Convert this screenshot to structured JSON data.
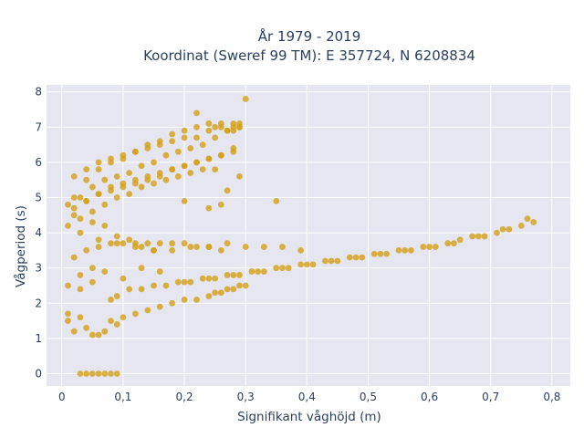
{
  "chart_data": {
    "type": "scatter",
    "title_line1": "År 1979 - 2019",
    "title_line2": "Koordinat (Sweref 99 TM): E 357724, N 6208834",
    "xlabel": "Signifikant våghöjd (m)",
    "ylabel": "Vågperiod (s)",
    "xlim": [
      -0.025,
      0.83
    ],
    "ylim": [
      -0.35,
      8.2
    ],
    "x_ticks": [
      0,
      0.1,
      0.2,
      0.3,
      0.4,
      0.5,
      0.6,
      0.7,
      0.8
    ],
    "x_tick_labels": [
      "0",
      "0,1",
      "0,2",
      "0,3",
      "0,4",
      "0,5",
      "0,6",
      "0,7",
      "0,8"
    ],
    "y_ticks": [
      0,
      1,
      2,
      3,
      4,
      5,
      6,
      7,
      8
    ],
    "y_tick_labels": [
      "0",
      "1",
      "2",
      "3",
      "4",
      "5",
      "6",
      "7",
      "8"
    ],
    "grid": true,
    "legend": "none",
    "colors": {
      "marker": "#d4a017",
      "plot_background": "#e5e6f0",
      "grid": "#ffffff",
      "text": "#2a3f5f"
    },
    "series": [
      {
        "color": "#d4a017",
        "x": [
          0.03,
          0.04,
          0.05,
          0.06,
          0.07,
          0.08,
          0.09,
          0.01,
          0.02,
          0.03,
          0.04,
          0.05,
          0.06,
          0.07,
          0.08,
          0.09,
          0.1,
          0.12,
          0.14,
          0.16,
          0.18,
          0.2,
          0.22,
          0.24,
          0.25,
          0.26,
          0.27,
          0.28,
          0.29,
          0.3,
          0.01,
          0.03,
          0.05,
          0.07,
          0.09,
          0.11,
          0.13,
          0.15,
          0.17,
          0.19,
          0.21,
          0.23,
          0.25,
          0.27,
          0.29,
          0.31,
          0.33,
          0.35,
          0.37,
          0.39,
          0.41,
          0.43,
          0.45,
          0.47,
          0.49,
          0.51,
          0.53,
          0.55,
          0.57,
          0.59,
          0.61,
          0.63,
          0.65,
          0.67,
          0.69,
          0.71,
          0.73,
          0.75,
          0.77,
          0.01,
          0.03,
          0.05,
          0.08,
          0.1,
          0.13,
          0.16,
          0.2,
          0.24,
          0.28,
          0.32,
          0.36,
          0.4,
          0.44,
          0.48,
          0.52,
          0.56,
          0.6,
          0.64,
          0.68,
          0.72,
          0.76,
          0.02,
          0.04,
          0.06,
          0.08,
          0.1,
          0.12,
          0.14,
          0.16,
          0.18,
          0.2,
          0.22,
          0.24,
          0.26,
          0.06,
          0.09,
          0.12,
          0.15,
          0.18,
          0.21,
          0.24,
          0.27,
          0.3,
          0.33,
          0.36,
          0.39,
          0.03,
          0.05,
          0.07,
          0.09,
          0.11,
          0.13,
          0.15,
          0.02,
          0.04,
          0.06,
          0.08,
          0.1,
          0.12,
          0.14,
          0.16,
          0.18,
          0.2,
          0.22,
          0.24,
          0.26,
          0.28,
          0.01,
          0.03,
          0.05,
          0.07,
          0.09,
          0.11,
          0.13,
          0.15,
          0.17,
          0.19,
          0.21,
          0.23,
          0.25,
          0.27,
          0.29,
          0.02,
          0.04,
          0.06,
          0.08,
          0.1,
          0.12,
          0.14,
          0.16,
          0.18,
          0.2,
          0.22,
          0.24,
          0.26,
          0.28,
          0.01,
          0.03,
          0.05,
          0.07,
          0.09,
          0.11,
          0.13,
          0.15,
          0.17,
          0.19,
          0.21,
          0.23,
          0.25,
          0.27,
          0.02,
          0.04,
          0.06,
          0.08,
          0.1,
          0.12,
          0.14,
          0.16,
          0.18,
          0.2,
          0.22,
          0.24,
          0.26,
          0.28,
          0.29,
          0.02,
          0.04,
          0.06,
          0.08,
          0.1,
          0.12,
          0.14,
          0.16,
          0.18,
          0.2,
          0.22,
          0.24,
          0.26,
          0.28,
          0.22,
          0.25,
          0.28,
          0.29,
          0.3,
          0.27,
          0.35,
          0.29,
          0.24,
          0.2,
          0.26
        ],
        "y": [
          0,
          0,
          0,
          0,
          0,
          0,
          0,
          1.5,
          1.2,
          1.6,
          1.3,
          1.1,
          1.1,
          1.2,
          1.5,
          1.4,
          1.6,
          1.7,
          1.8,
          1.9,
          2.0,
          2.1,
          2.1,
          2.2,
          2.3,
          2.3,
          2.4,
          2.4,
          2.5,
          2.5,
          2.5,
          2.8,
          3.0,
          2.9,
          2.2,
          2.4,
          2.4,
          2.5,
          2.5,
          2.6,
          2.6,
          2.7,
          2.7,
          2.8,
          2.8,
          2.9,
          2.9,
          3.0,
          3.0,
          3.1,
          3.1,
          3.2,
          3.2,
          3.3,
          3.3,
          3.4,
          3.4,
          3.5,
          3.5,
          3.6,
          3.6,
          3.7,
          3.8,
          3.9,
          3.9,
          4.0,
          4.1,
          4.2,
          4.3,
          1.7,
          2.4,
          2.6,
          2.1,
          2.7,
          3.0,
          2.9,
          2.6,
          2.7,
          2.8,
          2.9,
          3.0,
          3.1,
          3.2,
          3.3,
          3.4,
          3.5,
          3.6,
          3.7,
          3.9,
          4.1,
          4.4,
          3.3,
          3.5,
          3.6,
          3.7,
          3.7,
          3.7,
          3.7,
          3.7,
          3.7,
          3.7,
          3.6,
          3.6,
          3.5,
          3.8,
          3.7,
          3.6,
          3.5,
          3.5,
          3.6,
          3.6,
          3.7,
          3.6,
          3.6,
          3.6,
          3.5,
          4.0,
          4.3,
          4.2,
          3.9,
          3.8,
          3.6,
          3.5,
          4.5,
          4.9,
          5.1,
          5.2,
          5.3,
          5.4,
          5.5,
          5.6,
          5.8,
          5.9,
          6.0,
          6.1,
          6.2,
          6.3,
          4.8,
          5.0,
          5.3,
          5.5,
          5.6,
          5.7,
          5.9,
          6.0,
          6.2,
          6.3,
          6.4,
          6.5,
          6.7,
          6.9,
          7.0,
          5.0,
          5.5,
          5.8,
          6.0,
          6.1,
          6.3,
          6.5,
          6.6,
          6.8,
          6.9,
          7.0,
          7.1,
          7.1,
          7.1,
          4.2,
          4.4,
          4.6,
          4.8,
          5.0,
          5.1,
          5.3,
          5.4,
          5.5,
          5.6,
          5.7,
          5.8,
          5.8,
          6.9,
          5.6,
          5.8,
          6.0,
          6.1,
          6.2,
          6.3,
          6.4,
          6.5,
          6.6,
          6.7,
          6.7,
          6.9,
          7.0,
          7.0,
          7.1,
          4.7,
          4.9,
          5.1,
          5.3,
          5.4,
          5.5,
          5.6,
          5.7,
          5.8,
          5.9,
          6.0,
          6.1,
          6.2,
          6.4,
          7.4,
          7.0,
          6.9,
          7.0,
          7.8,
          5.2,
          4.9,
          5.6,
          4.7,
          4.9,
          4.8
        ]
      }
    ]
  }
}
